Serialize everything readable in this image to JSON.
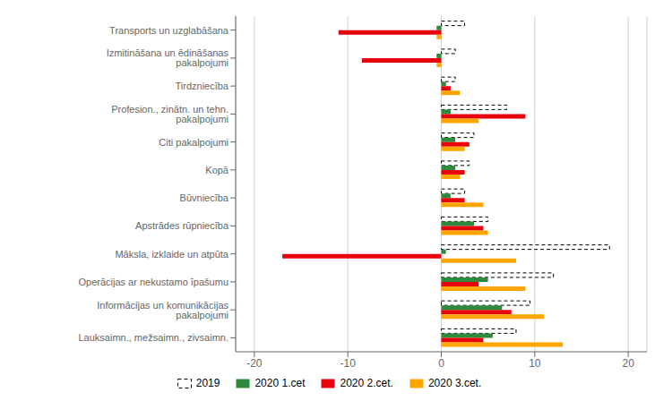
{
  "chart_data": {
    "type": "bar",
    "orientation": "horizontal",
    "categories": [
      "Lauksaimn., mežsaimn., zivsaimn.",
      "Informācijas un komunikācijas pakalpojumi",
      "Operācijas ar nekustamo īpašumu",
      "Māksla, izklaide un atpūta",
      "Apstrādes rūpniecība",
      "Būvniecība",
      "Kopā",
      "Citi pakalpojumi",
      "Profesion., zinātn. un tehn. pakalpojumi",
      "Tirdzniecība",
      "Izmitināšana un ēdināšanas pakalpojumi",
      "Transports un uzglabāšana"
    ],
    "series": [
      {
        "name": "2019",
        "color": "#ffffff",
        "line_style": "dashed",
        "values": [
          8.0,
          9.5,
          12.0,
          18.0,
          5.0,
          2.5,
          3.0,
          3.5,
          7.0,
          1.5,
          1.5,
          2.5
        ]
      },
      {
        "name": "2020 1.cet",
        "color": "#2e8b3e",
        "values": [
          5.5,
          6.5,
          5.0,
          0.5,
          3.5,
          1.0,
          1.5,
          1.5,
          1.0,
          0.5,
          -0.5,
          -0.5
        ]
      },
      {
        "name": "2020 2.cet.",
        "color": "#e8000d",
        "values": [
          4.5,
          7.5,
          4.0,
          -17.0,
          4.5,
          2.5,
          2.5,
          3.0,
          9.0,
          1.0,
          -8.5,
          -11.0
        ]
      },
      {
        "name": "2020 3.cet.",
        "color": "#ffa500",
        "values": [
          13.0,
          11.0,
          9.0,
          8.0,
          5.0,
          4.5,
          2.0,
          2.5,
          4.0,
          2.0,
          -0.5,
          -0.5
        ]
      }
    ],
    "xlim": [
      -22,
      22
    ],
    "xticks": [
      -20,
      -10,
      0,
      10,
      20
    ],
    "grid": true,
    "legend": "bottom"
  }
}
